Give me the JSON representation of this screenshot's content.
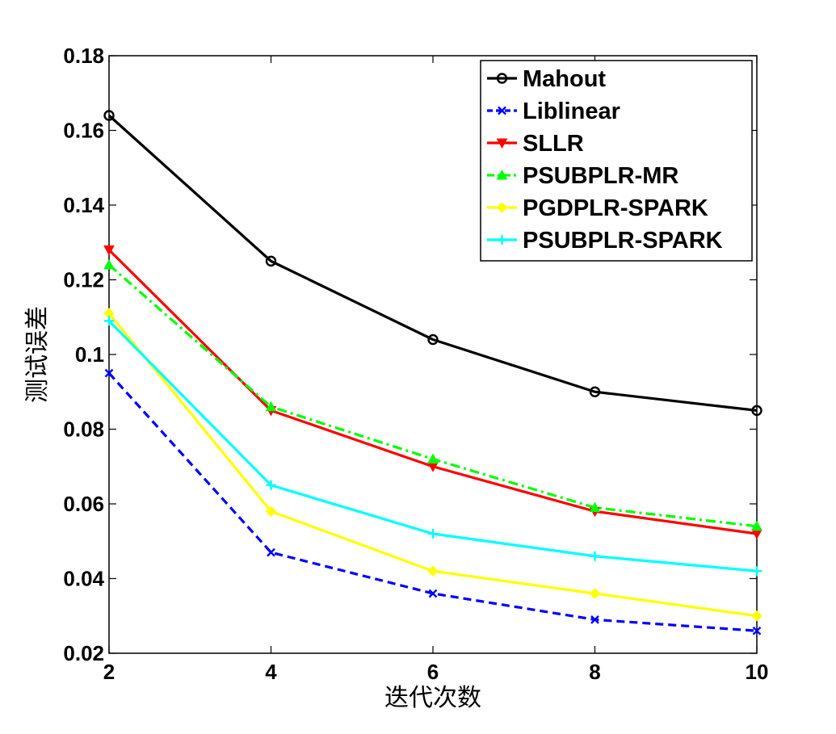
{
  "chart_data": {
    "type": "line",
    "title": "",
    "xlabel": "迭代次数",
    "ylabel": "测试误差",
    "x": [
      2,
      4,
      6,
      8,
      10
    ],
    "xlim": [
      2,
      10
    ],
    "ylim": [
      0.02,
      0.18
    ],
    "xticks": [
      2,
      4,
      6,
      8,
      10
    ],
    "xtick_labels": [
      "2",
      "4",
      "6",
      "8",
      "10"
    ],
    "yticks": [
      0.02,
      0.04,
      0.06,
      0.08,
      0.1,
      0.12,
      0.14,
      0.16,
      0.18
    ],
    "ytick_labels": [
      "0.02",
      "0.04",
      "0.06",
      "0.08",
      "0.1",
      "0.12",
      "0.14",
      "0.16",
      "0.18"
    ],
    "grid": false,
    "legend_position": "top-right",
    "series": [
      {
        "name": "Mahout",
        "values": [
          0.164,
          0.125,
          0.104,
          0.09,
          0.085
        ],
        "color": "#000000",
        "marker": "circle",
        "dash": "solid"
      },
      {
        "name": "Liblinear",
        "values": [
          0.095,
          0.047,
          0.036,
          0.029,
          0.026
        ],
        "color": "#0000ff",
        "marker": "x",
        "dash": "dashed"
      },
      {
        "name": "SLLR",
        "values": [
          0.128,
          0.085,
          0.07,
          0.058,
          0.052
        ],
        "color": "#ff0000",
        "marker": "triangle-down",
        "dash": "solid"
      },
      {
        "name": "PSUBPLR-MR",
        "values": [
          0.124,
          0.086,
          0.072,
          0.059,
          0.054
        ],
        "color": "#00ff00",
        "marker": "triangle-up",
        "dash": "dashdot"
      },
      {
        "name": "PGDPLR-SPARK",
        "values": [
          0.111,
          0.058,
          0.042,
          0.036,
          0.03
        ],
        "color": "#ffff00",
        "marker": "diamond",
        "dash": "solid"
      },
      {
        "name": "PSUBPLR-SPARK",
        "values": [
          0.109,
          0.065,
          0.052,
          0.046,
          0.042
        ],
        "color": "#00ffff",
        "marker": "plus",
        "dash": "solid"
      }
    ]
  }
}
